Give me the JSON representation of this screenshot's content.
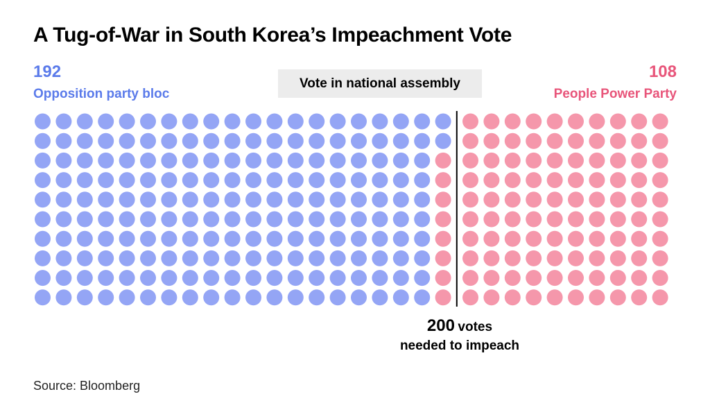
{
  "title": "A Tug-of-War in South Korea’s Impeachment Vote",
  "header_label": "Vote in national assembly",
  "left": {
    "count": "192",
    "name": "Opposition party bloc",
    "color": "#94a5f5"
  },
  "right": {
    "count": "108",
    "name": "People Power Party",
    "color": "#f597ab"
  },
  "threshold": {
    "number": "200",
    "unit": "votes",
    "line2": "needed to impeach"
  },
  "source": "Source: Bloomberg",
  "chart_data": {
    "type": "waffle",
    "total_seats": 300,
    "rows": 10,
    "columns": 30,
    "threshold_votes": 200,
    "series": [
      {
        "name": "Opposition party bloc",
        "value": 192,
        "color": "#94a5f5"
      },
      {
        "name": "People Power Party",
        "value": 108,
        "color": "#f597ab"
      }
    ]
  }
}
